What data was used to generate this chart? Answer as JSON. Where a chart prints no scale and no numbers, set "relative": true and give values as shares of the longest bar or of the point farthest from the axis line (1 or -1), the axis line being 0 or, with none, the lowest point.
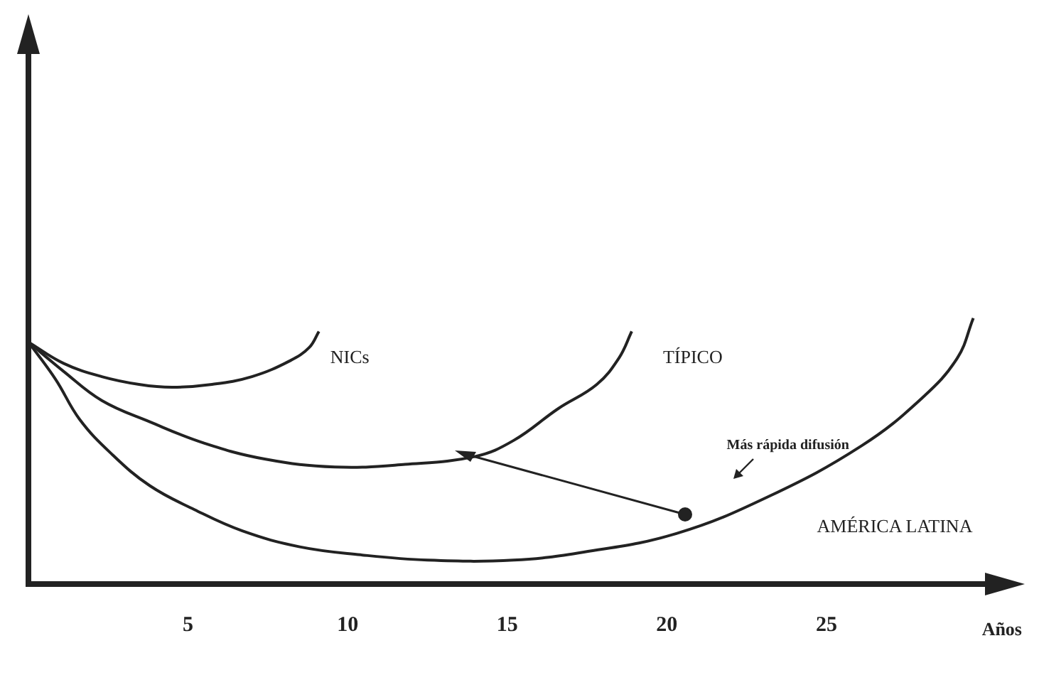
{
  "chart_data": {
    "type": "line",
    "relative": true,
    "xlabel": "Años",
    "xlim": [
      0,
      30.5
    ],
    "xticks": [
      5,
      10,
      15,
      20,
      25
    ],
    "grid": false,
    "legend": false,
    "marker": "none",
    "line_style": "solid",
    "annotations": [
      "Más rápida difusión"
    ],
    "series": [
      {
        "name": "NICs",
        "color": "#222222",
        "x": [
          0,
          1.1,
          2.3,
          3.5,
          4.5,
          5.7,
          7,
          8.2,
          8.8,
          9.1
        ],
        "values": [
          0.91,
          0.83,
          0.78,
          0.75,
          0.74,
          0.75,
          0.78,
          0.84,
          0.89,
          0.95
        ]
      },
      {
        "name": "TÍPICO",
        "color": "#222222",
        "x": [
          0,
          1.1,
          2.3,
          3.8,
          5.5,
          7.4,
          9.6,
          11.8,
          14,
          15.2,
          16.6,
          17.8,
          18.5,
          18.9
        ],
        "values": [
          0.91,
          0.8,
          0.69,
          0.61,
          0.53,
          0.47,
          0.44,
          0.45,
          0.48,
          0.54,
          0.66,
          0.75,
          0.85,
          0.95
        ]
      },
      {
        "name": "AMÉRICA LATINA",
        "color": "#222222",
        "x": [
          0,
          0.85,
          1.6,
          2.6,
          3.8,
          5.2,
          6.7,
          8.5,
          10.4,
          12.5,
          15.2,
          17.4,
          20.3,
          23.2,
          26.1,
          28,
          29.1,
          29.6
        ],
        "values": [
          0.91,
          0.77,
          0.62,
          0.49,
          0.37,
          0.28,
          0.2,
          0.14,
          0.11,
          0.09,
          0.09,
          0.12,
          0.19,
          0.33,
          0.52,
          0.7,
          0.85,
          1
        ]
      }
    ]
  }
}
